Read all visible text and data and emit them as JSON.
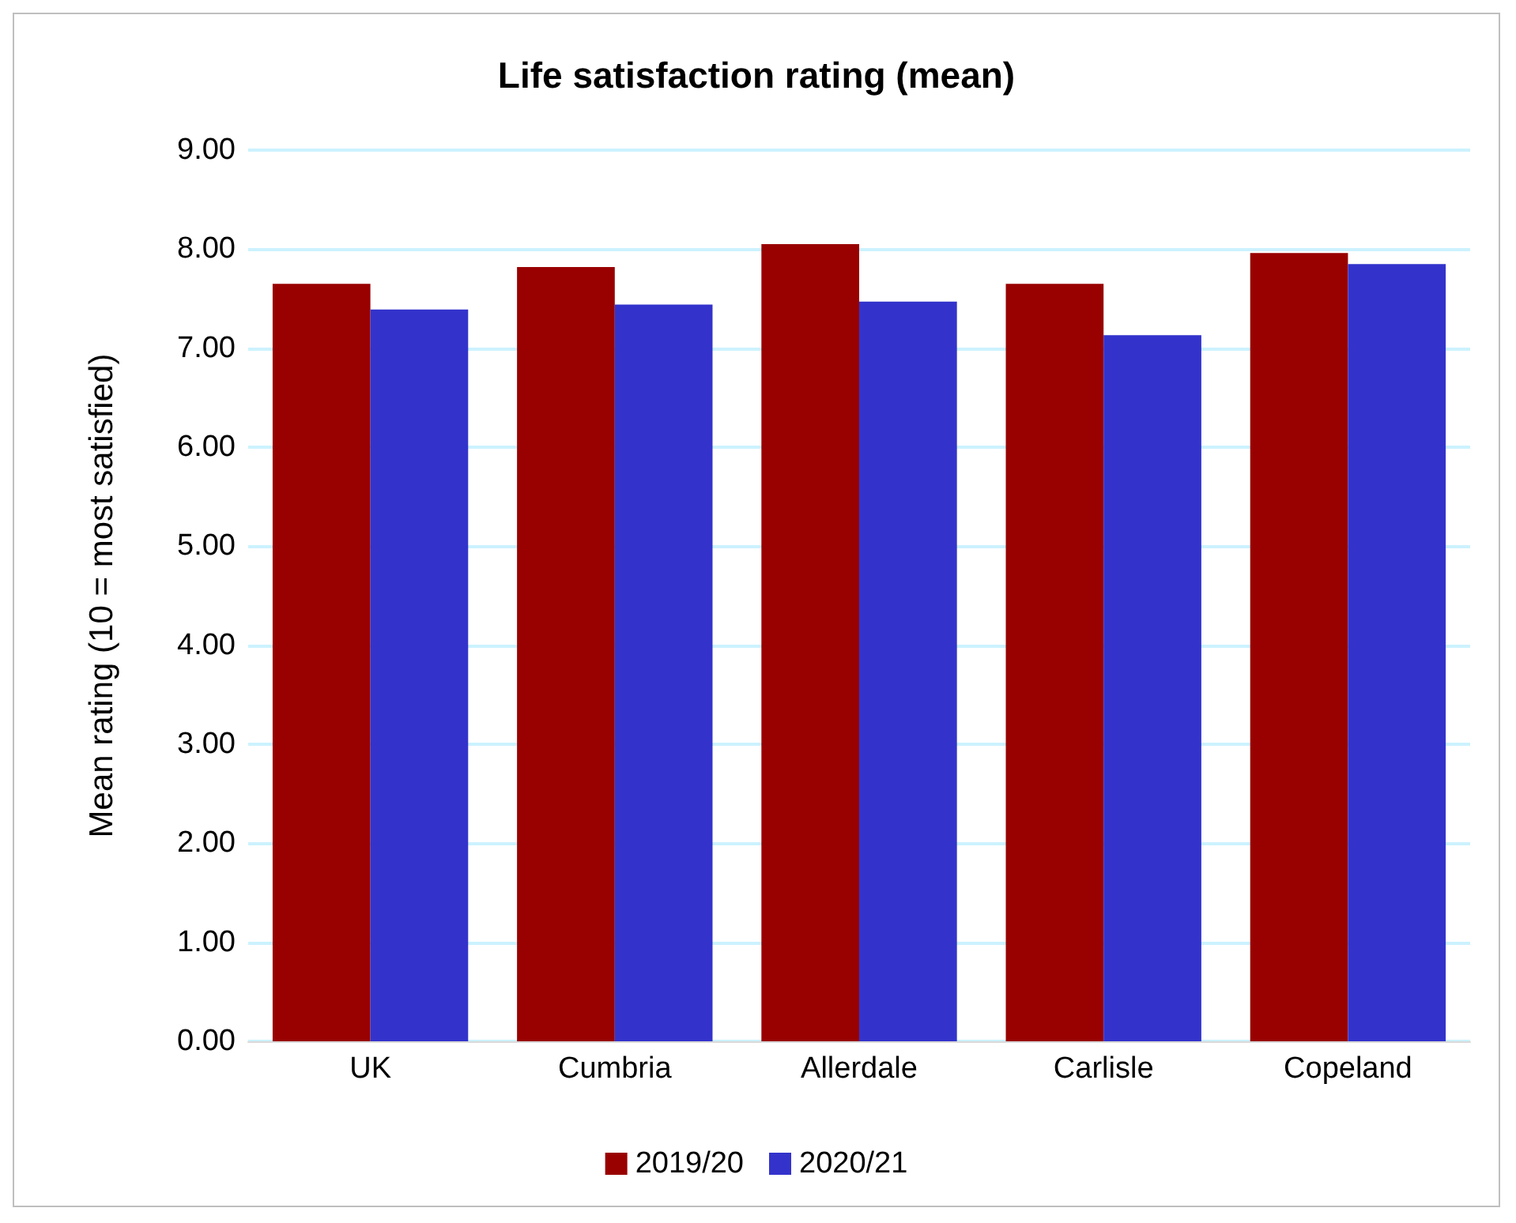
{
  "chart_data": {
    "type": "bar",
    "title": "Life satisfaction rating (mean)",
    "ylabel": "Mean rating (10 = most satisfied)",
    "categories": [
      "UK",
      "Cumbria",
      "Allerdale",
      "Carlisle",
      "Copeland"
    ],
    "series": [
      {
        "name": "2019/20",
        "color": "#990000",
        "values": [
          7.65,
          7.82,
          8.05,
          7.65,
          7.96
        ]
      },
      {
        "name": "2020/21",
        "color": "#3333cc",
        "values": [
          7.39,
          7.44,
          7.47,
          7.13,
          7.85
        ]
      }
    ],
    "ylim": [
      0,
      9
    ],
    "yticks": [
      {
        "value": 0,
        "label": "0.00"
      },
      {
        "value": 1,
        "label": "1.00"
      },
      {
        "value": 2,
        "label": "2.00"
      },
      {
        "value": 3,
        "label": "3.00"
      },
      {
        "value": 4,
        "label": "4.00"
      },
      {
        "value": 5,
        "label": "5.00"
      },
      {
        "value": 6,
        "label": "6.00"
      },
      {
        "value": 7,
        "label": "7.00"
      },
      {
        "value": 8,
        "label": "8.00"
      },
      {
        "value": 9,
        "label": "9.00"
      }
    ],
    "grid": "y",
    "legend": "bottom"
  }
}
